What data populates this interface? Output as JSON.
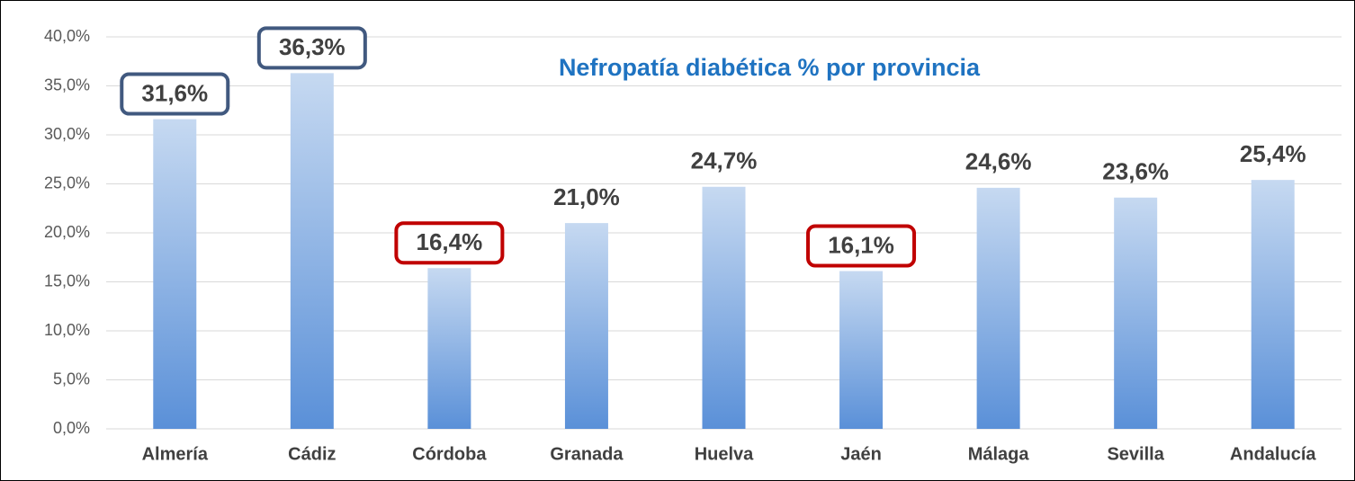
{
  "chart_data": {
    "type": "bar",
    "title": "Nefropatía diabética % por provincia",
    "categories": [
      "Almería",
      "Cádiz",
      "Córdoba",
      "Granada",
      "Huelva",
      "Jaén",
      "Málaga",
      "Sevilla",
      "Andalucía"
    ],
    "values": [
      31.6,
      36.3,
      16.4,
      21.0,
      24.7,
      16.1,
      24.6,
      23.6,
      25.4
    ],
    "value_labels": [
      "31,6%",
      "36,3%",
      "16,4%",
      "21,0%",
      "24,7%",
      "16,1%",
      "24,6%",
      "23,6%",
      "25,4%"
    ],
    "color": [
      "#c6d9f1",
      "#5a90d8"
    ],
    "label_boxes": [
      "#41597f",
      "#41597f",
      "#c00000",
      null,
      null,
      "#c00000",
      null,
      null,
      null
    ],
    "ylim": [
      0,
      40
    ],
    "yticks": [
      {
        "value": 0,
        "label": "0,0%"
      },
      {
        "value": 5,
        "label": "5,0%"
      },
      {
        "value": 10,
        "label": "10,0%"
      },
      {
        "value": 15,
        "label": "15,0%"
      },
      {
        "value": 20,
        "label": "20,0%"
      },
      {
        "value": 25,
        "label": "25,0%"
      },
      {
        "value": 30,
        "label": "30,0%"
      },
      {
        "value": 35,
        "label": "35,0%"
      },
      {
        "value": 40,
        "label": "40,0%"
      }
    ],
    "grid": true
  }
}
